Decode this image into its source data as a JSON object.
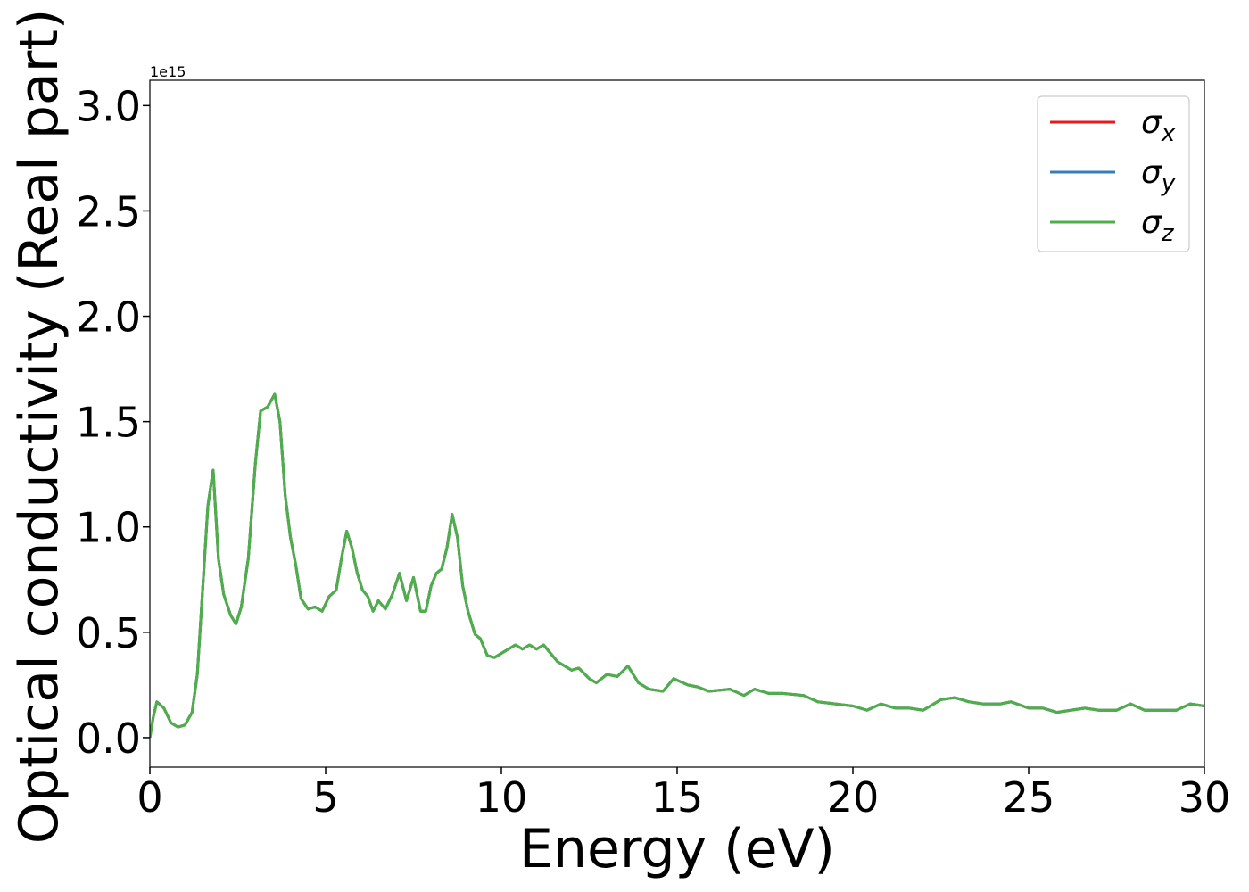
{
  "chart_data": {
    "type": "line",
    "xlabel": "Energy (eV)",
    "ylabel": "Optical conductivity (Real part)",
    "offset_label": "1e15",
    "xlim": [
      0,
      30
    ],
    "ylim": [
      -0.14,
      3.12
    ],
    "xticks": [
      0,
      5,
      10,
      15,
      20,
      25,
      30
    ],
    "yticks": [
      {
        "value": 0,
        "label": "0.0"
      },
      0.5,
      {
        "value": 1,
        "label": "1.0"
      },
      1.5,
      {
        "value": 2,
        "label": "2.0"
      },
      2.5,
      {
        "value": 3,
        "label": "3.0"
      }
    ],
    "legend": "upper right",
    "x": [
      0,
      0.1,
      0.2,
      0.4,
      0.6,
      0.8,
      1.0,
      1.2,
      1.35,
      1.5,
      1.65,
      1.8,
      1.95,
      2.1,
      2.3,
      2.45,
      2.6,
      2.8,
      3.0,
      3.15,
      3.35,
      3.55,
      3.7,
      3.85,
      4.0,
      4.15,
      4.3,
      4.5,
      4.7,
      4.9,
      5.1,
      5.3,
      5.45,
      5.6,
      5.75,
      5.9,
      6.05,
      6.2,
      6.35,
      6.5,
      6.7,
      6.9,
      7.1,
      7.3,
      7.5,
      7.7,
      7.85,
      8.0,
      8.15,
      8.3,
      8.45,
      8.6,
      8.75,
      8.9,
      9.05,
      9.25,
      9.4,
      9.6,
      9.8,
      10.0,
      10.4,
      10.6,
      10.8,
      11.0,
      11.2,
      11.6,
      12.0,
      12.2,
      12.5,
      12.7,
      13.0,
      13.3,
      13.6,
      13.9,
      14.2,
      14.6,
      14.9,
      15.3,
      15.6,
      15.9,
      16.5,
      16.9,
      17.2,
      17.6,
      18.0,
      18.6,
      19.0,
      19.5,
      20.0,
      20.4,
      20.8,
      21.2,
      21.6,
      22.0,
      22.5,
      22.9,
      23.3,
      23.7,
      24.2,
      24.5,
      25.0,
      25.4,
      25.8,
      26.2,
      26.6,
      27.0,
      27.5,
      27.9,
      28.3,
      28.8,
      29.2,
      29.6,
      30.0
    ],
    "series": [
      {
        "name": "σx",
        "color": "#e41a1c",
        "values": [
          0,
          0.1,
          0.17,
          0.14,
          0.07,
          0.05,
          0.06,
          0.12,
          0.3,
          0.7,
          1.1,
          1.27,
          0.85,
          0.68,
          0.58,
          0.54,
          0.62,
          0.85,
          1.3,
          1.55,
          1.57,
          1.63,
          1.5,
          1.15,
          0.95,
          0.82,
          0.66,
          0.61,
          0.62,
          0.6,
          0.67,
          0.7,
          0.85,
          0.98,
          0.9,
          0.78,
          0.7,
          0.67,
          0.6,
          0.65,
          0.61,
          0.68,
          0.78,
          0.65,
          0.76,
          0.6,
          0.6,
          0.72,
          0.78,
          0.8,
          0.9,
          1.06,
          0.95,
          0.72,
          0.6,
          0.49,
          0.47,
          0.39,
          0.38,
          0.4,
          0.44,
          0.42,
          0.44,
          0.42,
          0.44,
          0.36,
          0.32,
          0.33,
          0.28,
          0.26,
          0.3,
          0.29,
          0.34,
          0.26,
          0.23,
          0.22,
          0.28,
          0.25,
          0.24,
          0.22,
          0.23,
          0.2,
          0.23,
          0.21,
          0.21,
          0.2,
          0.17,
          0.16,
          0.15,
          0.13,
          0.16,
          0.14,
          0.14,
          0.13,
          0.18,
          0.19,
          0.17,
          0.16,
          0.16,
          0.17,
          0.14,
          0.14,
          0.12,
          0.13,
          0.14,
          0.13,
          0.13,
          0.16,
          0.13,
          0.13,
          0.13,
          0.16,
          0.15
        ]
      },
      {
        "name": "σy",
        "color": "#377eb8",
        "values": [
          0,
          0.1,
          0.17,
          0.14,
          0.07,
          0.05,
          0.06,
          0.12,
          0.3,
          0.7,
          1.1,
          1.27,
          0.85,
          0.68,
          0.58,
          0.54,
          0.62,
          0.85,
          1.3,
          1.55,
          1.57,
          1.63,
          1.5,
          1.15,
          0.95,
          0.82,
          0.66,
          0.61,
          0.62,
          0.6,
          0.67,
          0.7,
          0.85,
          0.98,
          0.9,
          0.78,
          0.7,
          0.67,
          0.6,
          0.65,
          0.61,
          0.68,
          0.78,
          0.65,
          0.76,
          0.6,
          0.6,
          0.72,
          0.78,
          0.8,
          0.9,
          1.06,
          0.95,
          0.72,
          0.6,
          0.49,
          0.47,
          0.39,
          0.38,
          0.4,
          0.44,
          0.42,
          0.44,
          0.42,
          0.44,
          0.36,
          0.32,
          0.33,
          0.28,
          0.26,
          0.3,
          0.29,
          0.34,
          0.26,
          0.23,
          0.22,
          0.28,
          0.25,
          0.24,
          0.22,
          0.23,
          0.2,
          0.23,
          0.21,
          0.21,
          0.2,
          0.17,
          0.16,
          0.15,
          0.13,
          0.16,
          0.14,
          0.14,
          0.13,
          0.18,
          0.19,
          0.17,
          0.16,
          0.16,
          0.17,
          0.14,
          0.14,
          0.12,
          0.13,
          0.14,
          0.13,
          0.13,
          0.16,
          0.13,
          0.13,
          0.13,
          0.16,
          0.15
        ]
      },
      {
        "name": "σz",
        "color": "#4daf4a",
        "values": [
          0,
          0.1,
          0.17,
          0.14,
          0.07,
          0.05,
          0.06,
          0.12,
          0.3,
          0.7,
          1.1,
          1.27,
          0.85,
          0.68,
          0.58,
          0.54,
          0.62,
          0.85,
          1.3,
          1.55,
          1.57,
          1.63,
          1.5,
          1.15,
          0.95,
          0.82,
          0.66,
          0.61,
          0.62,
          0.6,
          0.67,
          0.7,
          0.85,
          0.98,
          0.9,
          0.78,
          0.7,
          0.67,
          0.6,
          0.65,
          0.61,
          0.68,
          0.78,
          0.65,
          0.76,
          0.6,
          0.6,
          0.72,
          0.78,
          0.8,
          0.9,
          1.06,
          0.95,
          0.72,
          0.6,
          0.49,
          0.47,
          0.39,
          0.38,
          0.4,
          0.44,
          0.42,
          0.44,
          0.42,
          0.44,
          0.36,
          0.32,
          0.33,
          0.28,
          0.26,
          0.3,
          0.29,
          0.34,
          0.26,
          0.23,
          0.22,
          0.28,
          0.25,
          0.24,
          0.22,
          0.23,
          0.2,
          0.23,
          0.21,
          0.21,
          0.2,
          0.17,
          0.16,
          0.15,
          0.13,
          0.16,
          0.14,
          0.14,
          0.13,
          0.18,
          0.19,
          0.17,
          0.16,
          0.16,
          0.17,
          0.14,
          0.14,
          0.12,
          0.13,
          0.14,
          0.13,
          0.13,
          0.16,
          0.13,
          0.13,
          0.13,
          0.16,
          0.15
        ]
      }
    ]
  }
}
